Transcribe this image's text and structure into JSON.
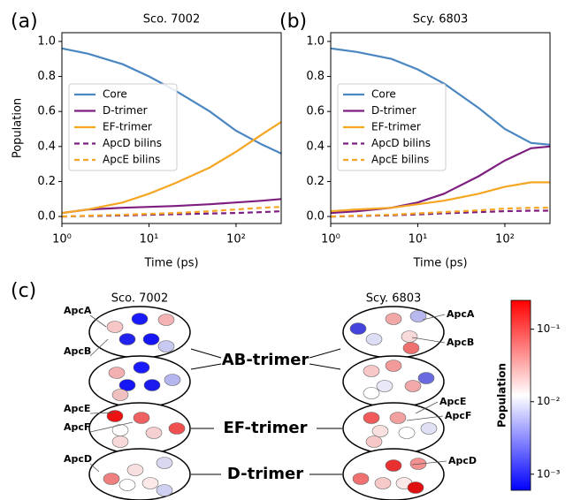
{
  "chart_data": [
    {
      "type": "line",
      "panel_label": "(a)",
      "title": "Sco. 7002",
      "xlabel": "Time (ps)",
      "ylabel": "Population",
      "log_x": true,
      "x": [
        1,
        2,
        5,
        10,
        20,
        50,
        100,
        200,
        330
      ],
      "xlim": [
        1,
        330
      ],
      "xticks": [
        {
          "value": 1,
          "label": "10⁰"
        },
        {
          "value": 10,
          "label": "10¹"
        },
        {
          "value": 100,
          "label": "10²"
        }
      ],
      "ylim": [
        -0.04,
        1.05
      ],
      "yticks": [
        {
          "value": 0,
          "label": "0.0"
        },
        0.2,
        0.4,
        0.6,
        0.8,
        {
          "value": 1,
          "label": "1.0"
        }
      ],
      "legend": "center-left",
      "series": [
        {
          "name": "Core",
          "color": "#4a86c1",
          "dashed": false,
          "values": [
            0.96,
            0.93,
            0.87,
            0.8,
            0.72,
            0.6,
            0.49,
            0.41,
            0.36
          ]
        },
        {
          "name": "D-trimer",
          "color": "#7e1e80",
          "dashed": false,
          "values": [
            0.02,
            0.04,
            0.05,
            0.055,
            0.06,
            0.07,
            0.08,
            0.09,
            0.1
          ]
        },
        {
          "name": "EF-trimer",
          "color": "#f5a623",
          "dashed": false,
          "values": [
            0.02,
            0.04,
            0.08,
            0.13,
            0.19,
            0.28,
            0.37,
            0.47,
            0.54
          ]
        },
        {
          "name": "ApcD bilins",
          "color": "#7e1e80",
          "dashed": true,
          "values": [
            0.0,
            0.003,
            0.006,
            0.01,
            0.013,
            0.017,
            0.02,
            0.025,
            0.03
          ]
        },
        {
          "name": "ApcE bilins",
          "color": "#f5a623",
          "dashed": true,
          "values": [
            0.0,
            0.005,
            0.01,
            0.015,
            0.02,
            0.03,
            0.04,
            0.05,
            0.055
          ]
        }
      ]
    },
    {
      "type": "line",
      "panel_label": "(b)",
      "title": "Scy. 6803",
      "xlabel": "Time (ps)",
      "log_x": true,
      "x": [
        1,
        2,
        5,
        10,
        20,
        50,
        100,
        200,
        330
      ],
      "xlim": [
        1,
        330
      ],
      "xticks": [
        {
          "value": 1,
          "label": "10⁰"
        },
        {
          "value": 10,
          "label": "10¹"
        },
        {
          "value": 100,
          "label": "10²"
        }
      ],
      "ylim": [
        -0.04,
        1.05
      ],
      "yticks": [
        {
          "value": 0,
          "label": "0.0"
        },
        0.2,
        0.4,
        0.6,
        0.8,
        {
          "value": 1,
          "label": "1.0"
        }
      ],
      "legend": "center-left",
      "series": [
        {
          "name": "Core",
          "color": "#4a86c1",
          "dashed": false,
          "values": [
            0.96,
            0.94,
            0.9,
            0.84,
            0.76,
            0.62,
            0.5,
            0.42,
            0.41
          ]
        },
        {
          "name": "D-trimer",
          "color": "#7e1e80",
          "dashed": false,
          "values": [
            0.02,
            0.03,
            0.05,
            0.08,
            0.13,
            0.23,
            0.32,
            0.39,
            0.4
          ]
        },
        {
          "name": "EF-trimer",
          "color": "#f5a623",
          "dashed": false,
          "values": [
            0.03,
            0.04,
            0.05,
            0.07,
            0.09,
            0.13,
            0.17,
            0.195,
            0.195
          ]
        },
        {
          "name": "ApcD bilins",
          "color": "#7e1e80",
          "dashed": true,
          "values": [
            0.0,
            0.003,
            0.007,
            0.012,
            0.018,
            0.025,
            0.03,
            0.033,
            0.033
          ]
        },
        {
          "name": "ApcE bilins",
          "color": "#f5a623",
          "dashed": true,
          "values": [
            0.0,
            0.005,
            0.01,
            0.018,
            0.025,
            0.035,
            0.045,
            0.05,
            0.05
          ]
        }
      ]
    }
  ],
  "diagram": {
    "panel_label": "(c)",
    "columns": [
      "Sco. 7002",
      "Scy. 6803"
    ],
    "trimers": [
      "AB-trimer",
      "EF-trimer",
      "D-trimer"
    ],
    "left_labels": [
      "ApcA",
      "ApcB",
      "ApcE",
      "ApcF",
      "ApcD"
    ],
    "right_labels": [
      "ApcA",
      "ApcB",
      "ApcE",
      "ApcF",
      "ApcD"
    ],
    "colorbar": {
      "label": "Population",
      "log": true,
      "lim": [
        0.0006,
        0.25
      ],
      "ticks": [
        {
          "value": 0.1,
          "label": "10⁻¹"
        },
        {
          "value": 0.01,
          "label": "10⁻²"
        },
        {
          "value": 0.001,
          "label": "10⁻³"
        }
      ]
    }
  }
}
